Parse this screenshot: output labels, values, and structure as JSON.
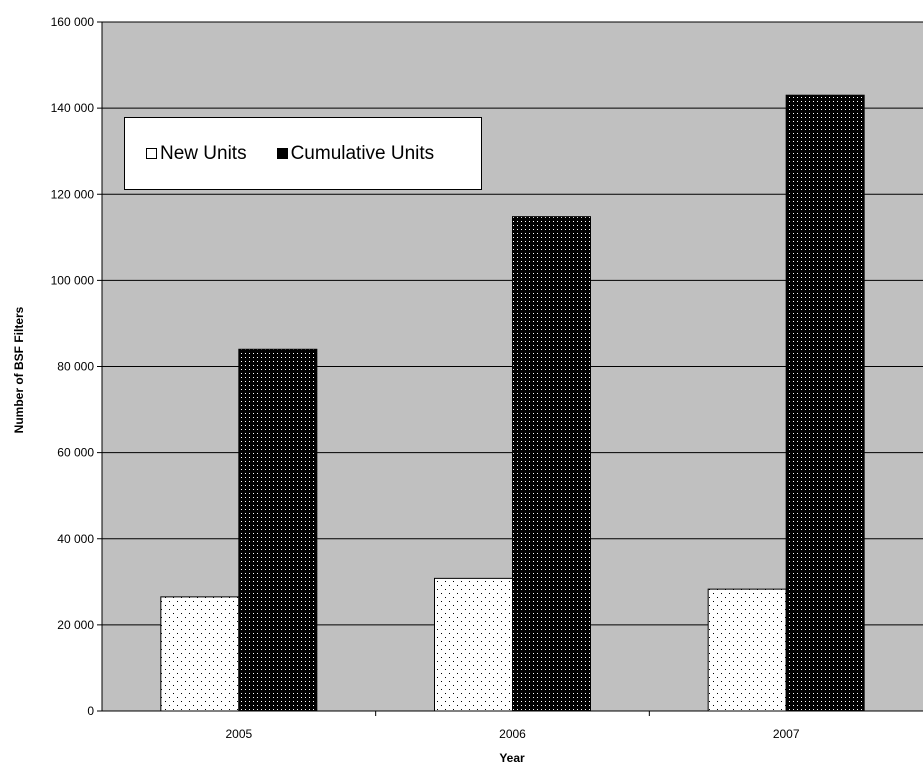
{
  "chart_data": {
    "type": "bar",
    "categories": [
      "2005",
      "2006",
      "2007"
    ],
    "series": [
      {
        "name": "New Units",
        "values": [
          26500,
          30800,
          28300
        ],
        "fill": "white-dotted"
      },
      {
        "name": "Cumulative Units",
        "values": [
          84000,
          114800,
          143000
        ],
        "fill": "black-dotted"
      }
    ],
    "xlabel": "Year",
    "ylabel": "Number of BSF Filters",
    "ylim": [
      0,
      160000
    ],
    "yticks": [
      0,
      20000,
      40000,
      60000,
      80000,
      100000,
      120000,
      140000,
      160000
    ],
    "ytick_labels": [
      "0",
      "20 000",
      "40 000",
      "60 000",
      "80 000",
      "100 000",
      "120 000",
      "140 000",
      "160 000"
    ],
    "grid": true,
    "legend_position": "top-left",
    "colors": {
      "plot_background": "#c0c0c0",
      "gridline": "#000000",
      "bar_dark": "#000000",
      "bar_light": "#ffffff"
    }
  }
}
